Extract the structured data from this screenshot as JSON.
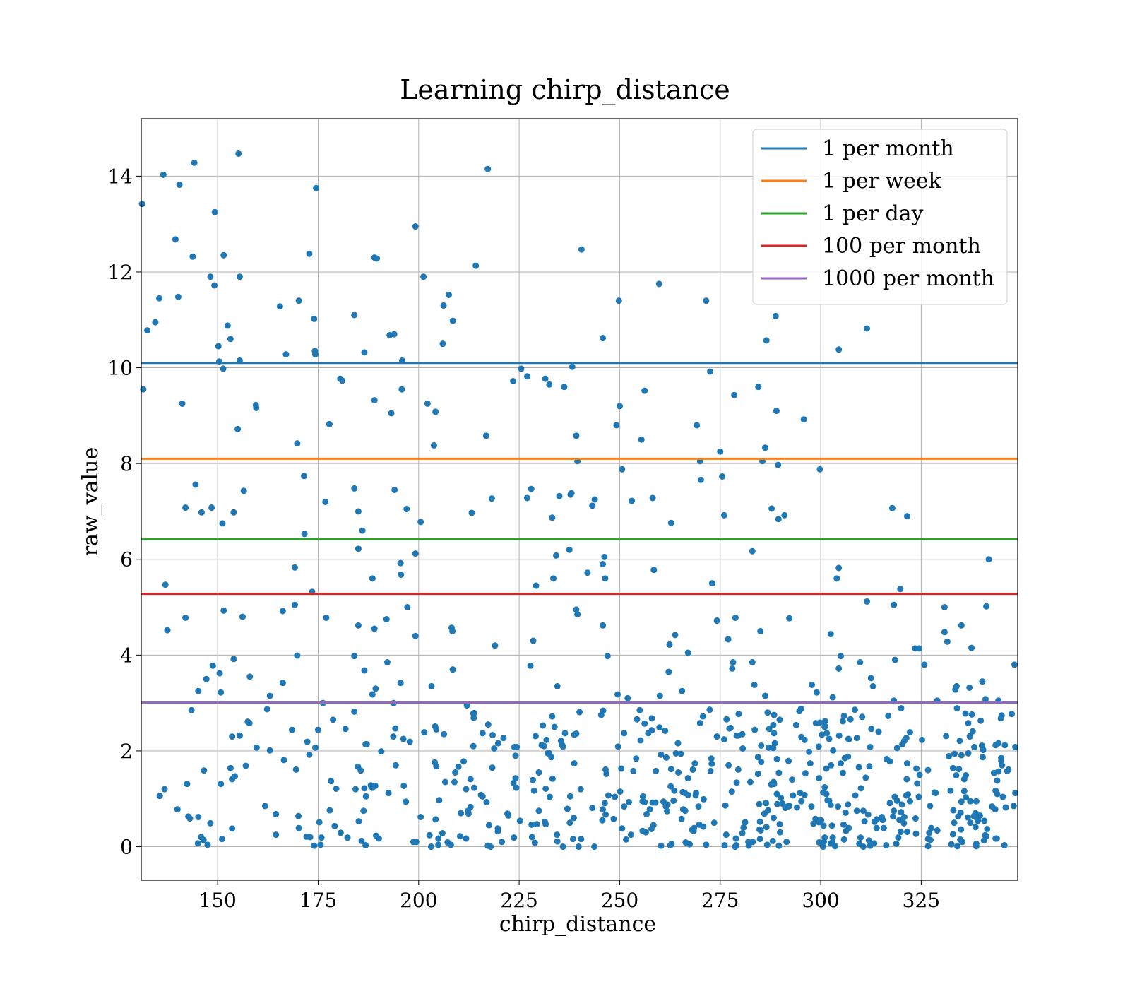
{
  "chart_data": {
    "type": "scatter",
    "title": "Learning chirp_distance",
    "xlabel": "chirp_distance",
    "ylabel": "raw_value",
    "xlim": [
      131,
      349
    ],
    "ylim": [
      -0.7,
      15.2
    ],
    "xticks": [
      150,
      175,
      200,
      225,
      250,
      275,
      300,
      325
    ],
    "yticks": [
      0,
      2,
      4,
      6,
      8,
      10,
      12,
      14
    ],
    "grid": true,
    "legend_position": "top-right",
    "point_color": "#1f77b4",
    "reference_lines": [
      {
        "name": "1 per month",
        "y": 10.1,
        "color": "#1f77b4"
      },
      {
        "name": "1 per week",
        "y": 8.1,
        "color": "#ff7f0e"
      },
      {
        "name": "1 per day",
        "y": 6.42,
        "color": "#2ca02c"
      },
      {
        "name": "100 per month",
        "y": 5.28,
        "color": "#d62728"
      },
      {
        "name": "1000 per month",
        "y": 3.01,
        "color": "#9467bd"
      }
    ],
    "points": [
      [
        131.2,
        13.42
      ],
      [
        132.5,
        10.78
      ],
      [
        134.5,
        10.95
      ],
      [
        136.5,
        14.03
      ],
      [
        135.5,
        11.45
      ],
      [
        140.5,
        13.82
      ],
      [
        139.5,
        12.68
      ],
      [
        144.2,
        14.28
      ],
      [
        140.2,
        11.48
      ],
      [
        143.8,
        12.32
      ],
      [
        148.2,
        11.9
      ],
      [
        149.2,
        11.72
      ],
      [
        149.3,
        13.25
      ],
      [
        150.2,
        10.45
      ],
      [
        150.4,
        10.13
      ],
      [
        151.5,
        12.35
      ],
      [
        152.5,
        10.88
      ],
      [
        153.2,
        10.6
      ],
      [
        155.2,
        14.47
      ],
      [
        155.5,
        11.9
      ],
      [
        155.5,
        10.15
      ],
      [
        151.4,
        9.98
      ],
      [
        131.5,
        9.55
      ],
      [
        141.2,
        9.25
      ],
      [
        159.5,
        9.22
      ],
      [
        159.6,
        9.16
      ],
      [
        155.0,
        8.72
      ],
      [
        165.5,
        11.28
      ],
      [
        170.2,
        11.4
      ],
      [
        174.0,
        11.02
      ],
      [
        174.5,
        13.75
      ],
      [
        174.2,
        10.35
      ],
      [
        174.3,
        10.28
      ],
      [
        167.0,
        10.28
      ],
      [
        172.8,
        12.38
      ],
      [
        184.0,
        11.1
      ],
      [
        186.5,
        10.32
      ],
      [
        189.0,
        12.3
      ],
      [
        189.6,
        12.28
      ],
      [
        192.8,
        10.68
      ],
      [
        193.9,
        10.7
      ],
      [
        195.9,
        10.15
      ],
      [
        199.2,
        12.95
      ],
      [
        201.2,
        11.9
      ],
      [
        206.2,
        11.3
      ],
      [
        207.5,
        11.52
      ],
      [
        208.5,
        10.98
      ],
      [
        206.0,
        10.5
      ],
      [
        214.2,
        12.13
      ],
      [
        217.2,
        14.15
      ],
      [
        180.5,
        9.77
      ],
      [
        181.0,
        9.73
      ],
      [
        177.8,
        8.82
      ],
      [
        169.8,
        8.42
      ],
      [
        189.0,
        9.32
      ],
      [
        195.8,
        9.55
      ],
      [
        193.2,
        9.05
      ],
      [
        202.2,
        9.25
      ],
      [
        204.2,
        9.08
      ],
      [
        203.8,
        8.38
      ],
      [
        216.8,
        8.58
      ],
      [
        223.5,
        9.72
      ],
      [
        225.5,
        9.98
      ],
      [
        227.0,
        9.82
      ],
      [
        231.5,
        9.77
      ],
      [
        232.5,
        9.65
      ],
      [
        236.2,
        9.6
      ],
      [
        238.2,
        10.02
      ],
      [
        240.5,
        12.47
      ],
      [
        245.8,
        10.62
      ],
      [
        249.8,
        11.4
      ],
      [
        250.0,
        9.2
      ],
      [
        249.2,
        8.8
      ],
      [
        256.2,
        9.52
      ],
      [
        255.4,
        8.5
      ],
      [
        259.8,
        11.75
      ],
      [
        271.5,
        11.4
      ],
      [
        272.5,
        9.92
      ],
      [
        269.2,
        8.8
      ],
      [
        275.0,
        8.25
      ],
      [
        278.5,
        9.43
      ],
      [
        284.5,
        9.6
      ],
      [
        286.5,
        10.57
      ],
      [
        288.8,
        11.08
      ],
      [
        286.2,
        8.33
      ],
      [
        289.0,
        9.1
      ],
      [
        295.8,
        8.92
      ],
      [
        285.5,
        8.05
      ],
      [
        289.4,
        7.97
      ],
      [
        299.8,
        7.88
      ],
      [
        304.5,
        10.38
      ],
      [
        311.5,
        10.82
      ],
      [
        239.2,
        8.58
      ],
      [
        239.5,
        8.05
      ],
      [
        270.0,
        8.05
      ],
      [
        250.6,
        7.88
      ],
      [
        275.5,
        7.73
      ],
      [
        270.2,
        7.66
      ],
      [
        317.8,
        7.07
      ],
      [
        321.5,
        6.9
      ],
      [
        142.0,
        7.08
      ],
      [
        144.5,
        7.56
      ],
      [
        146.0,
        6.98
      ],
      [
        148.5,
        7.08
      ],
      [
        151.2,
        6.75
      ],
      [
        154.0,
        6.98
      ],
      [
        156.5,
        7.43
      ],
      [
        171.5,
        7.74
      ],
      [
        171.6,
        6.53
      ],
      [
        176.8,
        7.2
      ],
      [
        184.0,
        7.48
      ],
      [
        185.0,
        7.0
      ],
      [
        186.0,
        6.6
      ],
      [
        194.0,
        7.45
      ],
      [
        197.0,
        7.05
      ],
      [
        200.5,
        6.78
      ],
      [
        213.2,
        6.97
      ],
      [
        218.2,
        7.27
      ],
      [
        227.0,
        7.28
      ],
      [
        228.0,
        7.47
      ],
      [
        233.2,
        6.87
      ],
      [
        235.0,
        7.32
      ],
      [
        237.8,
        7.35
      ],
      [
        238.0,
        7.38
      ],
      [
        243.2,
        7.12
      ],
      [
        243.8,
        7.25
      ],
      [
        253.0,
        7.22
      ],
      [
        258.2,
        7.28
      ],
      [
        262.8,
        6.76
      ],
      [
        276.0,
        6.92
      ],
      [
        287.8,
        7.06
      ],
      [
        289.5,
        6.84
      ],
      [
        291.0,
        6.92
      ],
      [
        137.0,
        5.47
      ],
      [
        137.5,
        4.52
      ],
      [
        142.0,
        4.78
      ],
      [
        169.2,
        5.83
      ],
      [
        173.5,
        5.32
      ],
      [
        185.0,
        6.22
      ],
      [
        188.5,
        5.6
      ],
      [
        195.5,
        5.92
      ],
      [
        195.6,
        5.68
      ],
      [
        199.2,
        6.12
      ],
      [
        237.5,
        6.2
      ],
      [
        234.2,
        6.08
      ],
      [
        233.5,
        5.6
      ],
      [
        242.0,
        5.72
      ],
      [
        245.8,
        5.9
      ],
      [
        246.2,
        6.05
      ],
      [
        246.4,
        5.6
      ],
      [
        229.2,
        5.45
      ],
      [
        258.5,
        5.78
      ],
      [
        273.0,
        5.5
      ],
      [
        283.0,
        6.17
      ],
      [
        304.5,
        5.82
      ],
      [
        304.0,
        5.6
      ],
      [
        319.8,
        5.38
      ],
      [
        318.2,
        5.05
      ],
      [
        311.5,
        5.12
      ],
      [
        341.8,
        6.0
      ],
      [
        151.5,
        4.93
      ],
      [
        156.2,
        4.8
      ],
      [
        166.2,
        4.92
      ],
      [
        169.2,
        5.05
      ],
      [
        177.0,
        4.78
      ],
      [
        185.0,
        4.62
      ],
      [
        189.0,
        4.55
      ],
      [
        192.0,
        4.75
      ],
      [
        197.2,
        5.0
      ],
      [
        199.2,
        4.4
      ],
      [
        208.2,
        4.57
      ],
      [
        208.4,
        4.5
      ],
      [
        219.0,
        4.2
      ],
      [
        228.5,
        4.3
      ],
      [
        239.2,
        4.95
      ],
      [
        239.5,
        4.85
      ],
      [
        245.8,
        4.62
      ],
      [
        262.4,
        4.22
      ],
      [
        263.8,
        4.42
      ],
      [
        274.2,
        4.72
      ],
      [
        277.0,
        4.33
      ],
      [
        278.8,
        4.78
      ],
      [
        285.0,
        4.5
      ],
      [
        292.2,
        4.77
      ],
      [
        302.5,
        4.44
      ],
      [
        330.8,
        5.0
      ],
      [
        330.8,
        4.48
      ],
      [
        331.5,
        4.28
      ],
      [
        335.0,
        4.62
      ],
      [
        341.2,
        5.02
      ],
      [
        143.5,
        2.85
      ],
      [
        145.2,
        3.25
      ],
      [
        147.2,
        3.5
      ],
      [
        148.8,
        3.78
      ],
      [
        150.5,
        3.62
      ],
      [
        150.8,
        3.22
      ],
      [
        154.0,
        3.92
      ],
      [
        158.0,
        3.55
      ],
      [
        163.0,
        3.15
      ],
      [
        166.2,
        3.42
      ],
      [
        169.8,
        3.99
      ],
      [
        176.2,
        3.0
      ],
      [
        184.0,
        3.98
      ],
      [
        186.5,
        3.68
      ],
      [
        188.5,
        3.18
      ],
      [
        189.3,
        3.3
      ],
      [
        192.2,
        3.85
      ],
      [
        193.8,
        3.0
      ],
      [
        195.5,
        3.42
      ],
      [
        203.2,
        3.35
      ],
      [
        208.5,
        3.7
      ],
      [
        212.0,
        2.95
      ],
      [
        227.8,
        3.78
      ],
      [
        234.5,
        3.35
      ],
      [
        247.0,
        3.98
      ],
      [
        249.5,
        3.18
      ],
      [
        252.0,
        3.1
      ],
      [
        255.0,
        2.85
      ],
      [
        260.0,
        3.15
      ],
      [
        262.2,
        3.65
      ],
      [
        267.0,
        4.05
      ],
      [
        265.5,
        3.25
      ],
      [
        278.2,
        3.85
      ],
      [
        278.0,
        3.72
      ],
      [
        283.0,
        3.85
      ],
      [
        283.5,
        3.38
      ],
      [
        286.2,
        3.15
      ],
      [
        297.8,
        3.38
      ],
      [
        299.0,
        3.22
      ],
      [
        304.5,
        3.72
      ],
      [
        305.0,
        3.98
      ],
      [
        309.8,
        3.85
      ],
      [
        312.5,
        3.52
      ],
      [
        313.0,
        3.35
      ],
      [
        318.2,
        3.05
      ],
      [
        318.5,
        3.9
      ],
      [
        323.5,
        4.14
      ],
      [
        324.5,
        4.14
      ],
      [
        325.8,
        3.8
      ],
      [
        329.0,
        3.05
      ],
      [
        333.5,
        3.28
      ],
      [
        333.8,
        3.35
      ],
      [
        336.0,
        2.78
      ],
      [
        337.0,
        3.32
      ],
      [
        337.5,
        4.15
      ],
      [
        340.2,
        3.45
      ],
      [
        341.0,
        3.08
      ],
      [
        344.2,
        3.05
      ],
      [
        348.2,
        3.8
      ],
      [
        303.0,
        3.12
      ]
    ],
    "dense_cluster": {
      "x_range": [
        131,
        349
      ],
      "y_range": [
        0,
        2.9
      ]
    }
  }
}
